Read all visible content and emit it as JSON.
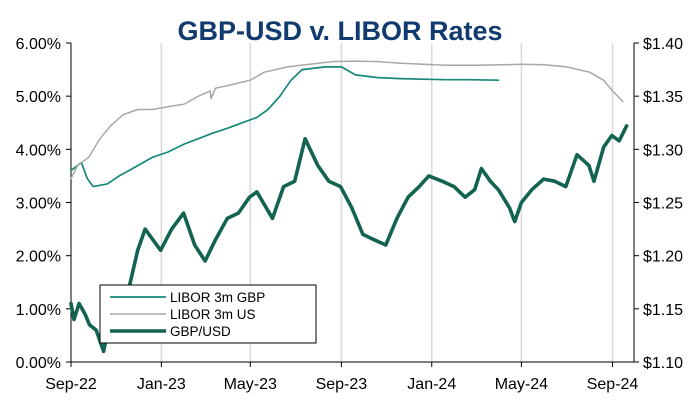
{
  "chart_data": {
    "type": "line",
    "title": "GBP-USD  v. LIBOR Rates",
    "x_ticks": [
      "Sep-22",
      "Jan-23",
      "May-23",
      "Sep-23",
      "Jan-24",
      "May-24",
      "Sep-24"
    ],
    "y_left": {
      "ticks": [
        "0.00%",
        "1.00%",
        "2.00%",
        "3.00%",
        "4.00%",
        "5.00%",
        "6.00%"
      ],
      "range": [
        0,
        6
      ]
    },
    "y_right": {
      "ticks": [
        "$1.10",
        "$1.15",
        "$1.20",
        "$1.25",
        "$1.30",
        "$1.35",
        "$1.40"
      ],
      "range": [
        1.1,
        1.4
      ]
    },
    "grid": "vertical",
    "legend_position": "bottom-left",
    "series": [
      {
        "name": "LIBOR 3m GBP",
        "axis": "left",
        "color": "#16887a",
        "points": [
          [
            "2022-09-01",
            3.6
          ],
          [
            "2022-09-15",
            3.75
          ],
          [
            "2022-09-23",
            3.45
          ],
          [
            "2022-10-01",
            3.3
          ],
          [
            "2022-10-20",
            3.35
          ],
          [
            "2022-11-05",
            3.5
          ],
          [
            "2022-12-01",
            3.7
          ],
          [
            "2022-12-20",
            3.85
          ],
          [
            "2023-01-10",
            3.95
          ],
          [
            "2023-02-01",
            4.1
          ],
          [
            "2023-02-20",
            4.2
          ],
          [
            "2023-03-10",
            4.3
          ],
          [
            "2023-04-01",
            4.4
          ],
          [
            "2023-04-20",
            4.5
          ],
          [
            "2023-05-10",
            4.6
          ],
          [
            "2023-05-25",
            4.75
          ],
          [
            "2023-06-10",
            5.0
          ],
          [
            "2023-06-25",
            5.3
          ],
          [
            "2023-07-10",
            5.5
          ],
          [
            "2023-08-10",
            5.55
          ],
          [
            "2023-09-01",
            5.55
          ],
          [
            "2023-09-20",
            5.4
          ],
          [
            "2023-10-20",
            5.35
          ],
          [
            "2023-11-20",
            5.33
          ],
          [
            "2023-12-20",
            5.32
          ],
          [
            "2024-01-20",
            5.31
          ],
          [
            "2024-02-20",
            5.31
          ],
          [
            "2024-03-31",
            5.3
          ]
        ]
      },
      {
        "name": "LIBOR 3m US",
        "axis": "left",
        "color": "#a8a8a8",
        "points": [
          [
            "2022-09-01",
            3.45
          ],
          [
            "2022-09-10",
            3.7
          ],
          [
            "2022-09-25",
            3.85
          ],
          [
            "2022-10-10",
            4.2
          ],
          [
            "2022-10-25",
            4.45
          ],
          [
            "2022-11-10",
            4.65
          ],
          [
            "2022-11-30",
            4.75
          ],
          [
            "2022-12-20",
            4.75
          ],
          [
            "2023-01-10",
            4.8
          ],
          [
            "2023-02-01",
            4.85
          ],
          [
            "2023-02-20",
            5.0
          ],
          [
            "2023-03-08",
            5.1
          ],
          [
            "2023-03-09",
            4.95
          ],
          [
            "2023-03-15",
            5.15
          ],
          [
            "2023-04-01",
            5.2
          ],
          [
            "2023-05-01",
            5.3
          ],
          [
            "2023-05-20",
            5.45
          ],
          [
            "2023-06-20",
            5.55
          ],
          [
            "2023-07-20",
            5.6
          ],
          [
            "2023-08-20",
            5.65
          ],
          [
            "2023-09-20",
            5.66
          ],
          [
            "2023-10-20",
            5.65
          ],
          [
            "2023-11-20",
            5.62
          ],
          [
            "2023-12-20",
            5.6
          ],
          [
            "2024-01-20",
            5.58
          ],
          [
            "2024-03-01",
            5.58
          ],
          [
            "2024-05-01",
            5.6
          ],
          [
            "2024-06-01",
            5.59
          ],
          [
            "2024-07-01",
            5.55
          ],
          [
            "2024-08-01",
            5.45
          ],
          [
            "2024-08-20",
            5.3
          ],
          [
            "2024-09-01",
            5.1
          ],
          [
            "2024-09-15",
            4.9
          ]
        ]
      },
      {
        "name": "GBP/USD",
        "axis": "right",
        "color": "#12634f",
        "points": [
          [
            "2022-09-01",
            1.155
          ],
          [
            "2022-09-05",
            1.14
          ],
          [
            "2022-09-12",
            1.155
          ],
          [
            "2022-09-20",
            1.145
          ],
          [
            "2022-09-26",
            1.135
          ],
          [
            "2022-10-05",
            1.13
          ],
          [
            "2022-10-15",
            1.11
          ],
          [
            "2022-10-28",
            1.155
          ],
          [
            "2022-11-05",
            1.14
          ],
          [
            "2022-11-15",
            1.16
          ],
          [
            "2022-11-30",
            1.205
          ],
          [
            "2022-12-10",
            1.225
          ],
          [
            "2022-12-31",
            1.205
          ],
          [
            "2023-01-15",
            1.225
          ],
          [
            "2023-01-31",
            1.24
          ],
          [
            "2023-02-15",
            1.21
          ],
          [
            "2023-03-01",
            1.195
          ],
          [
            "2023-03-15",
            1.215
          ],
          [
            "2023-03-31",
            1.235
          ],
          [
            "2023-04-15",
            1.24
          ],
          [
            "2023-04-30",
            1.255
          ],
          [
            "2023-05-10",
            1.26
          ],
          [
            "2023-05-31",
            1.235
          ],
          [
            "2023-06-15",
            1.265
          ],
          [
            "2023-06-30",
            1.27
          ],
          [
            "2023-07-14",
            1.31
          ],
          [
            "2023-07-31",
            1.285
          ],
          [
            "2023-08-15",
            1.27
          ],
          [
            "2023-08-31",
            1.265
          ],
          [
            "2023-09-15",
            1.245
          ],
          [
            "2023-09-30",
            1.22
          ],
          [
            "2023-10-15",
            1.215
          ],
          [
            "2023-10-31",
            1.21
          ],
          [
            "2023-11-15",
            1.235
          ],
          [
            "2023-11-30",
            1.255
          ],
          [
            "2023-12-15",
            1.265
          ],
          [
            "2023-12-28",
            1.275
          ],
          [
            "2024-01-15",
            1.27
          ],
          [
            "2024-01-31",
            1.265
          ],
          [
            "2024-02-15",
            1.255
          ],
          [
            "2024-02-28",
            1.262
          ],
          [
            "2024-03-08",
            1.282
          ],
          [
            "2024-03-20",
            1.27
          ],
          [
            "2024-03-31",
            1.262
          ],
          [
            "2024-04-15",
            1.245
          ],
          [
            "2024-04-22",
            1.232
          ],
          [
            "2024-05-01",
            1.25
          ],
          [
            "2024-05-15",
            1.262
          ],
          [
            "2024-05-31",
            1.272
          ],
          [
            "2024-06-15",
            1.27
          ],
          [
            "2024-06-30",
            1.265
          ],
          [
            "2024-07-15",
            1.295
          ],
          [
            "2024-07-31",
            1.285
          ],
          [
            "2024-08-07",
            1.27
          ],
          [
            "2024-08-20",
            1.302
          ],
          [
            "2024-08-31",
            1.313
          ],
          [
            "2024-09-10",
            1.308
          ],
          [
            "2024-09-20",
            1.322
          ]
        ]
      }
    ]
  }
}
